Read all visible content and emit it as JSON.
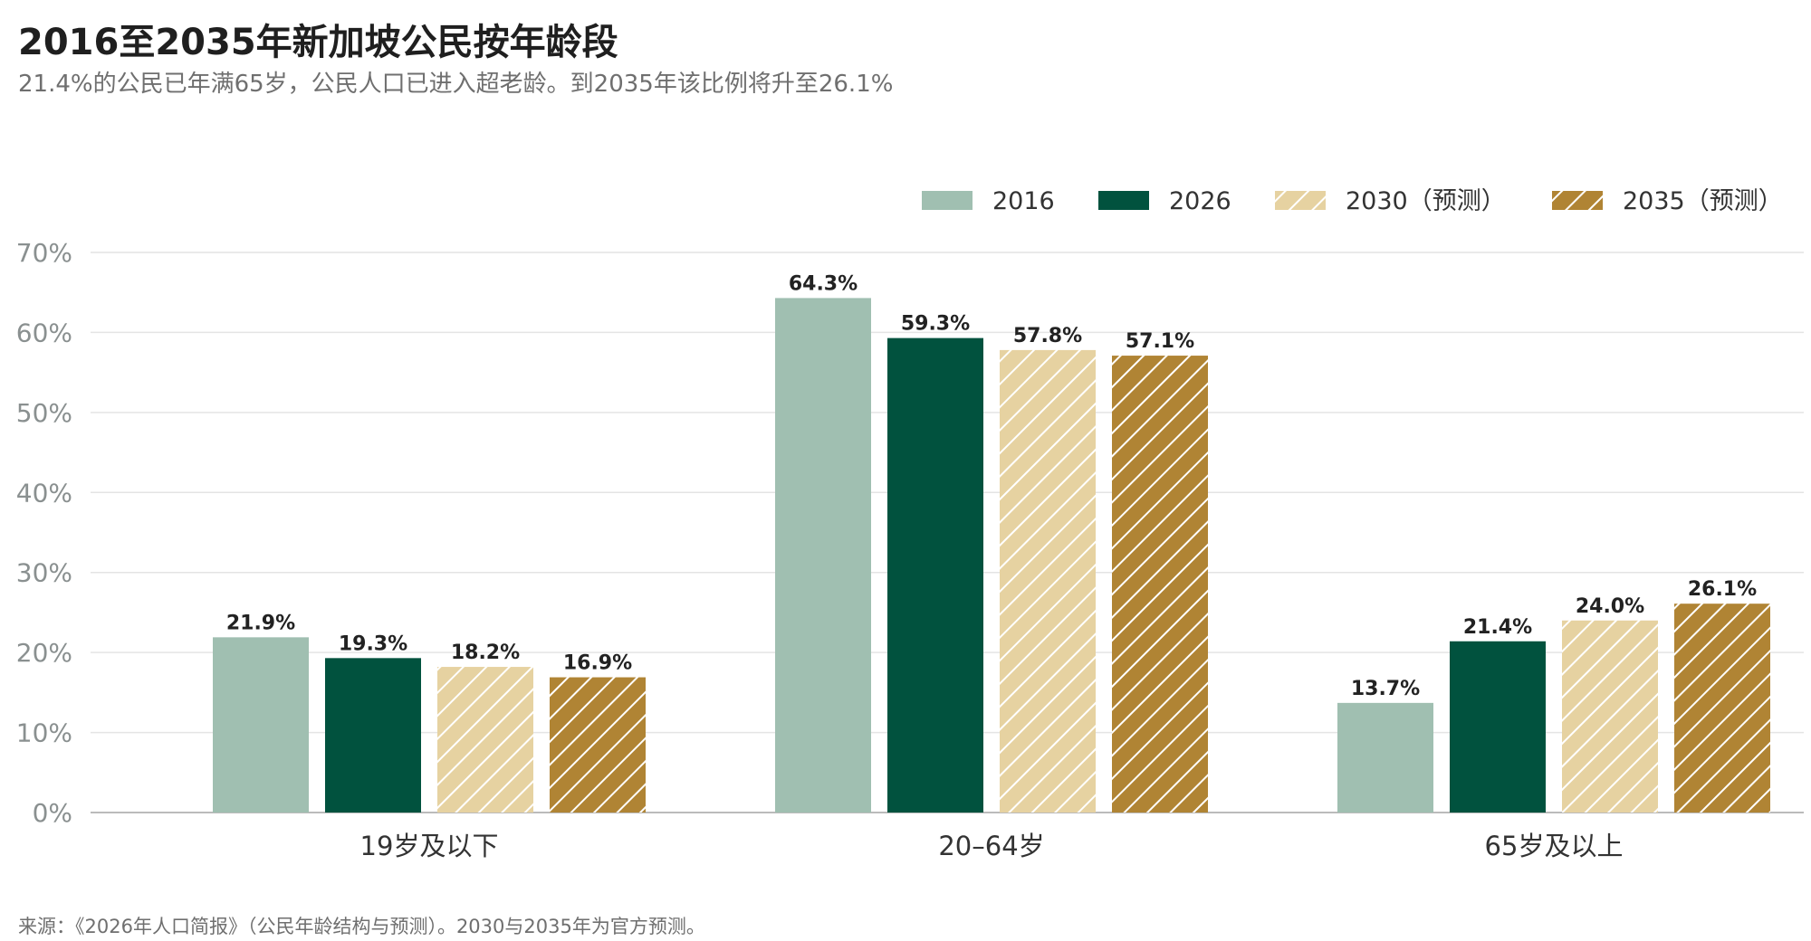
{
  "title": "2016至2035年新加坡公民按年龄段",
  "subtitle": "21.4%的公民已年满65岁，公民人口已进入超老龄。到2035年该比例将升至26.1%",
  "source": "来源：《2026年人口简报》（公民年龄结构与预测）。2030与2035年为官方预测。",
  "chart_data": {
    "type": "bar",
    "categories": [
      "19岁及以下",
      "20–64岁",
      "65岁及以上"
    ],
    "series": [
      {
        "name": "2016",
        "values": [
          21.9,
          64.3,
          13.7
        ],
        "color": "#a0bfb1",
        "pattern": "solid"
      },
      {
        "name": "2026",
        "values": [
          19.3,
          59.3,
          21.4
        ],
        "color": "#01523e",
        "pattern": "solid"
      },
      {
        "name": "2030（预测）",
        "values": [
          18.2,
          57.8,
          24.0
        ],
        "color": "#e6d2a1",
        "pattern": "hatch"
      },
      {
        "name": "2035（预测）",
        "values": [
          16.9,
          57.1,
          26.1
        ],
        "color": "#b08434",
        "pattern": "hatch"
      }
    ],
    "value_labels": [
      [
        "21.9%",
        "64.3%",
        "13.7%"
      ],
      [
        "19.3%",
        "59.3%",
        "21.4%"
      ],
      [
        "18.2%",
        "57.8%",
        "24.0%"
      ],
      [
        "16.9%",
        "57.1%",
        "26.1%"
      ]
    ],
    "y_ticks": [
      0,
      10,
      20,
      30,
      40,
      50,
      60,
      70
    ],
    "y_tick_labels": [
      "0%",
      "10%",
      "20%",
      "30%",
      "40%",
      "50%",
      "60%",
      "70%"
    ],
    "ylim": [
      0,
      70
    ],
    "grid": true,
    "legend_position": "top-right"
  }
}
